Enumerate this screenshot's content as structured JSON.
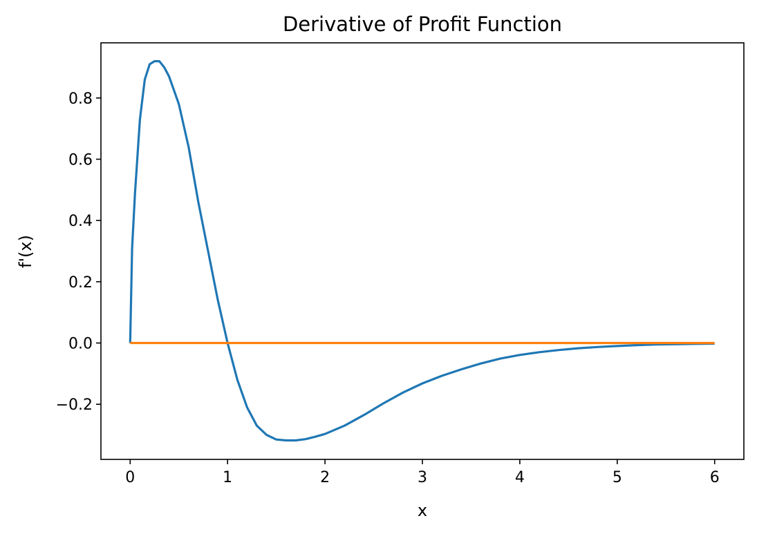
{
  "chart_data": {
    "type": "line",
    "title": "Derivative of Profit Function",
    "xlabel": "x",
    "ylabel": "f'(x)",
    "xlim": [
      -0.3,
      6.3
    ],
    "ylim": [
      -0.38,
      0.98
    ],
    "xticks": [
      0,
      1,
      2,
      3,
      4,
      5,
      6
    ],
    "xtick_labels": [
      "0",
      "1",
      "2",
      "3",
      "4",
      "5",
      "6"
    ],
    "yticks": [
      -0.2,
      0.0,
      0.2,
      0.4,
      0.6,
      0.8
    ],
    "ytick_labels": [
      "−0.2",
      "0.0",
      "0.2",
      "0.4",
      "0.6",
      "0.8"
    ],
    "grid": false,
    "series": [
      {
        "color": "#1f77b4",
        "x": [
          0,
          0.02,
          0.05,
          0.1,
          0.15,
          0.2,
          0.25,
          0.3,
          0.35,
          0.4,
          0.5,
          0.6,
          0.7,
          0.8,
          0.9,
          1.0,
          1.1,
          1.2,
          1.3,
          1.4,
          1.5,
          1.6,
          1.7,
          1.8,
          1.9,
          2.0,
          2.2,
          2.4,
          2.6,
          2.8,
          3.0,
          3.2,
          3.4,
          3.6,
          3.8,
          4.0,
          4.2,
          4.4,
          4.6,
          4.8,
          5.0,
          5.2,
          5.4,
          5.6,
          5.8,
          6.0
        ],
        "y": [
          0.0,
          0.31,
          0.49,
          0.73,
          0.86,
          0.91,
          0.92,
          0.92,
          0.9,
          0.87,
          0.78,
          0.64,
          0.46,
          0.3,
          0.14,
          0.0,
          -0.12,
          -0.21,
          -0.27,
          -0.3,
          -0.315,
          -0.318,
          -0.318,
          -0.314,
          -0.306,
          -0.297,
          -0.27,
          -0.235,
          -0.197,
          -0.162,
          -0.132,
          -0.107,
          -0.086,
          -0.067,
          -0.051,
          -0.039,
          -0.03,
          -0.023,
          -0.017,
          -0.013,
          -0.01,
          -0.007,
          -0.005,
          -0.004,
          -0.003,
          -0.002
        ]
      },
      {
        "color": "#ff7f0e",
        "x": [
          0,
          6
        ],
        "y": [
          0,
          0
        ]
      }
    ]
  }
}
